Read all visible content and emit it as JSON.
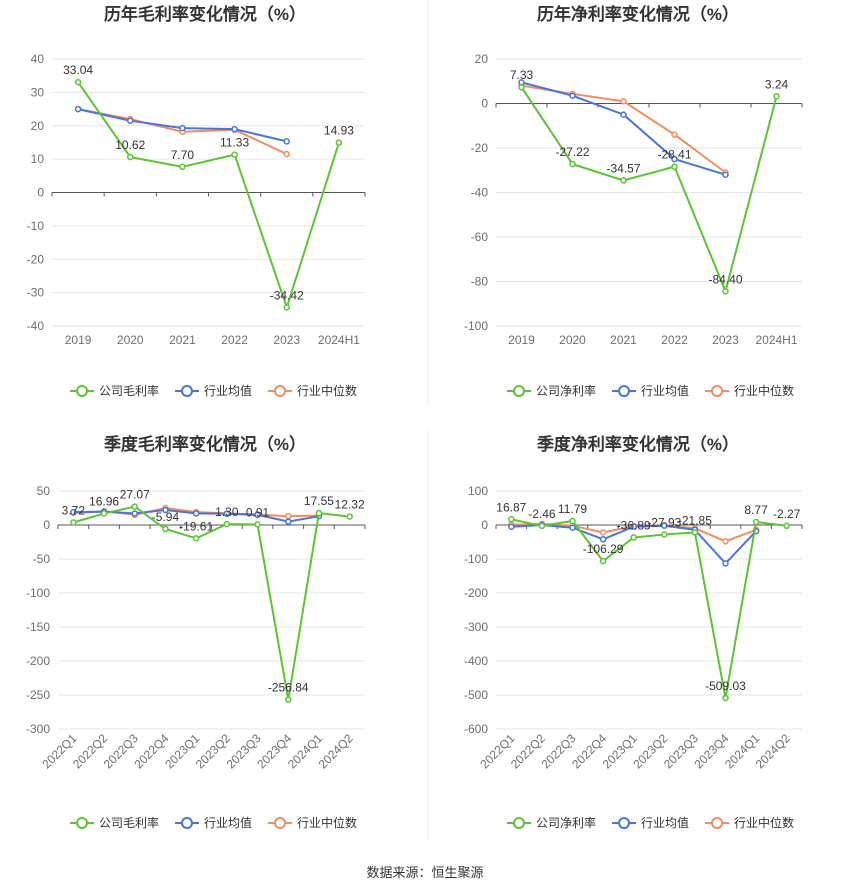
{
  "source": "数据来源：恒生聚源",
  "colors": {
    "company": "#5ec236",
    "industry_avg": "#4a74d6",
    "industry_median": "#f28c62",
    "grid": "#e6e6e6",
    "axis": "#555555"
  },
  "chart_data": [
    {
      "type": "line",
      "title": "历年毛利率变化情况（%）",
      "categories": [
        "2019",
        "2020",
        "2021",
        "2022",
        "2023",
        "2024H1"
      ],
      "ylim": [
        -40,
        40
      ],
      "yticks": [
        40,
        30,
        20,
        10,
        0,
        -10,
        -20,
        -30,
        -40
      ],
      "x_rotated": false,
      "series": [
        {
          "name": "公司毛利率",
          "color_key": "company",
          "values": [
            33.04,
            10.62,
            7.7,
            11.33,
            -34.42,
            14.93
          ],
          "labels": [
            "33.04",
            "10.62",
            "7.70",
            "11.33",
            "-34.42",
            "14.93"
          ]
        },
        {
          "name": "行业均值",
          "color_key": "industry_avg",
          "values": [
            25.0,
            21.5,
            19.3,
            19.0,
            15.3,
            null
          ]
        },
        {
          "name": "行业中位数",
          "color_key": "industry_median",
          "values": [
            25.0,
            22.0,
            18.2,
            18.8,
            11.5,
            null
          ]
        }
      ]
    },
    {
      "type": "line",
      "title": "历年净利率变化情况（%）",
      "categories": [
        "2019",
        "2020",
        "2021",
        "2022",
        "2023",
        "2024H1"
      ],
      "ylim": [
        -100,
        20
      ],
      "yticks": [
        20,
        0,
        -20,
        -40,
        -60,
        -80,
        -100
      ],
      "x_rotated": false,
      "series": [
        {
          "name": "公司净利率",
          "color_key": "company",
          "values": [
            7.33,
            -27.22,
            -34.57,
            -28.41,
            -84.4,
            3.24
          ],
          "labels": [
            "7.33",
            "-27.22",
            "-34.57",
            "-28.41",
            "-84.40",
            "3.24"
          ]
        },
        {
          "name": "行业均值",
          "color_key": "industry_avg",
          "values": [
            9.5,
            3.5,
            -5.0,
            -25.0,
            -32.0,
            null
          ]
        },
        {
          "name": "行业中位数",
          "color_key": "industry_median",
          "values": [
            8.0,
            4.3,
            1.0,
            -14.0,
            -31.0,
            null
          ]
        }
      ]
    },
    {
      "type": "line",
      "title": "季度毛利率变化情况（%）",
      "categories": [
        "2022Q1",
        "2022Q2",
        "2022Q3",
        "2022Q4",
        "2023Q1",
        "2023Q2",
        "2023Q3",
        "2023Q4",
        "2024Q1",
        "2024Q2"
      ],
      "ylim": [
        -300,
        50
      ],
      "yticks": [
        50,
        0,
        -50,
        -100,
        -150,
        -200,
        -250,
        -300
      ],
      "x_rotated": true,
      "series": [
        {
          "name": "公司毛利率",
          "color_key": "company",
          "values": [
            3.72,
            16.96,
            27.07,
            -5.94,
            -19.61,
            1.3,
            0.91,
            -256.84,
            17.55,
            12.32
          ],
          "labels": [
            "3.72",
            "16.96",
            "27.07",
            "-5.94",
            "-19.61",
            "1.30",
            "0.91",
            "-256.84",
            "17.55",
            "12.32"
          ]
        },
        {
          "name": "行业均值",
          "color_key": "industry_avg",
          "values": [
            19.0,
            19.5,
            17.0,
            22.0,
            17.0,
            16.5,
            15.0,
            5.0,
            13.0,
            null
          ]
        },
        {
          "name": "行业中位数",
          "color_key": "industry_median",
          "values": [
            18.0,
            20.5,
            15.0,
            25.0,
            19.0,
            17.0,
            15.5,
            13.0,
            14.0,
            null
          ]
        }
      ]
    },
    {
      "type": "line",
      "title": "季度净利率变化情况（%）",
      "categories": [
        "2022Q1",
        "2022Q2",
        "2022Q3",
        "2022Q4",
        "2023Q1",
        "2023Q2",
        "2023Q3",
        "2023Q4",
        "2024Q1",
        "2024Q2"
      ],
      "ylim": [
        -600,
        100
      ],
      "yticks": [
        100,
        0,
        -100,
        -200,
        -300,
        -400,
        -500,
        -600
      ],
      "x_rotated": true,
      "series": [
        {
          "name": "公司净利率",
          "color_key": "company",
          "values": [
            16.87,
            -2.46,
            11.79,
            -106.29,
            -36.89,
            -27.93,
            -21.85,
            -509.03,
            8.77,
            -2.27
          ],
          "labels": [
            "16.87",
            "-2.46",
            "11.79",
            "-106.29",
            "-36.89",
            "-27.93",
            "-21.85",
            "-509.03",
            "8.77",
            "-2.27"
          ]
        },
        {
          "name": "行业均值",
          "color_key": "industry_avg",
          "values": [
            -5.0,
            0.0,
            -8.0,
            -42.0,
            -5.0,
            -2.0,
            -14.0,
            -113.0,
            -18.0,
            null
          ]
        },
        {
          "name": "行业中位数",
          "color_key": "industry_median",
          "values": [
            1.0,
            3.0,
            -2.0,
            -22.0,
            -3.0,
            0.0,
            -10.0,
            -48.0,
            -14.0,
            null
          ]
        }
      ]
    }
  ]
}
